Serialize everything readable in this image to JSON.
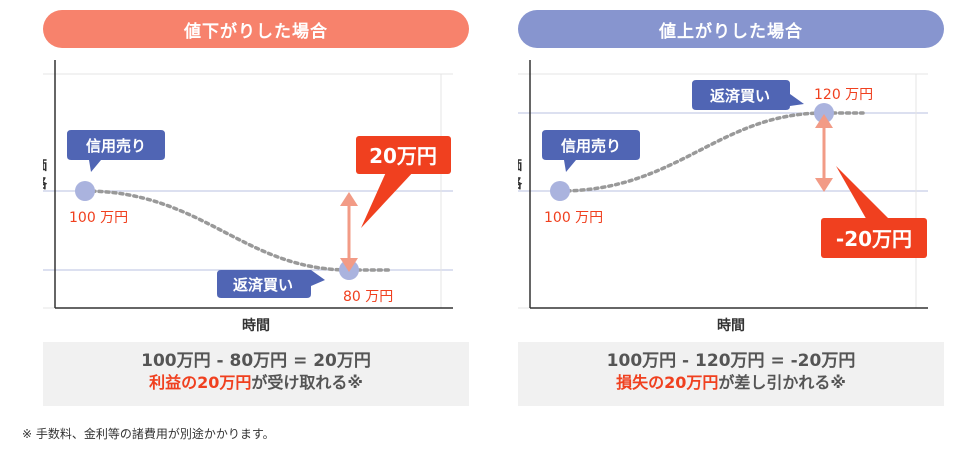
{
  "left_panel": {
    "title": "値下がりした場合",
    "ylabel": "価格",
    "xlabel": "時間",
    "sell_label": "信用売り",
    "sell_price": "100 万円",
    "buy_label": "返済買い",
    "buy_price": "80 万円",
    "delta_label": "20万円",
    "calc": "100万円 - 80万円 = 20万円",
    "result_highlight": "利益の20万円",
    "result_rest": "が受け取れる※"
  },
  "right_panel": {
    "title": "値上がりした場合",
    "ylabel": "価格",
    "xlabel": "時間",
    "sell_label": "信用売り",
    "sell_price": "100 万円",
    "buy_label": "返済買い",
    "buy_price": "120 万円",
    "delta_label": "-20万円",
    "calc": "100万円 - 120万円 = -20万円",
    "result_highlight": "損失の20万円",
    "result_rest": "が差し引かれる※"
  },
  "footnote": "※ 手数料、金利等の諸費用が別途かかります。",
  "colors": {
    "left_title": "#f7826c",
    "right_title": "#8795cf",
    "label_box": "#5065b4",
    "point": "#aab3de",
    "price_text": "#f0401f",
    "delta_box": "#f0401f",
    "arrow": "#f29b86",
    "curve": "#999999"
  }
}
